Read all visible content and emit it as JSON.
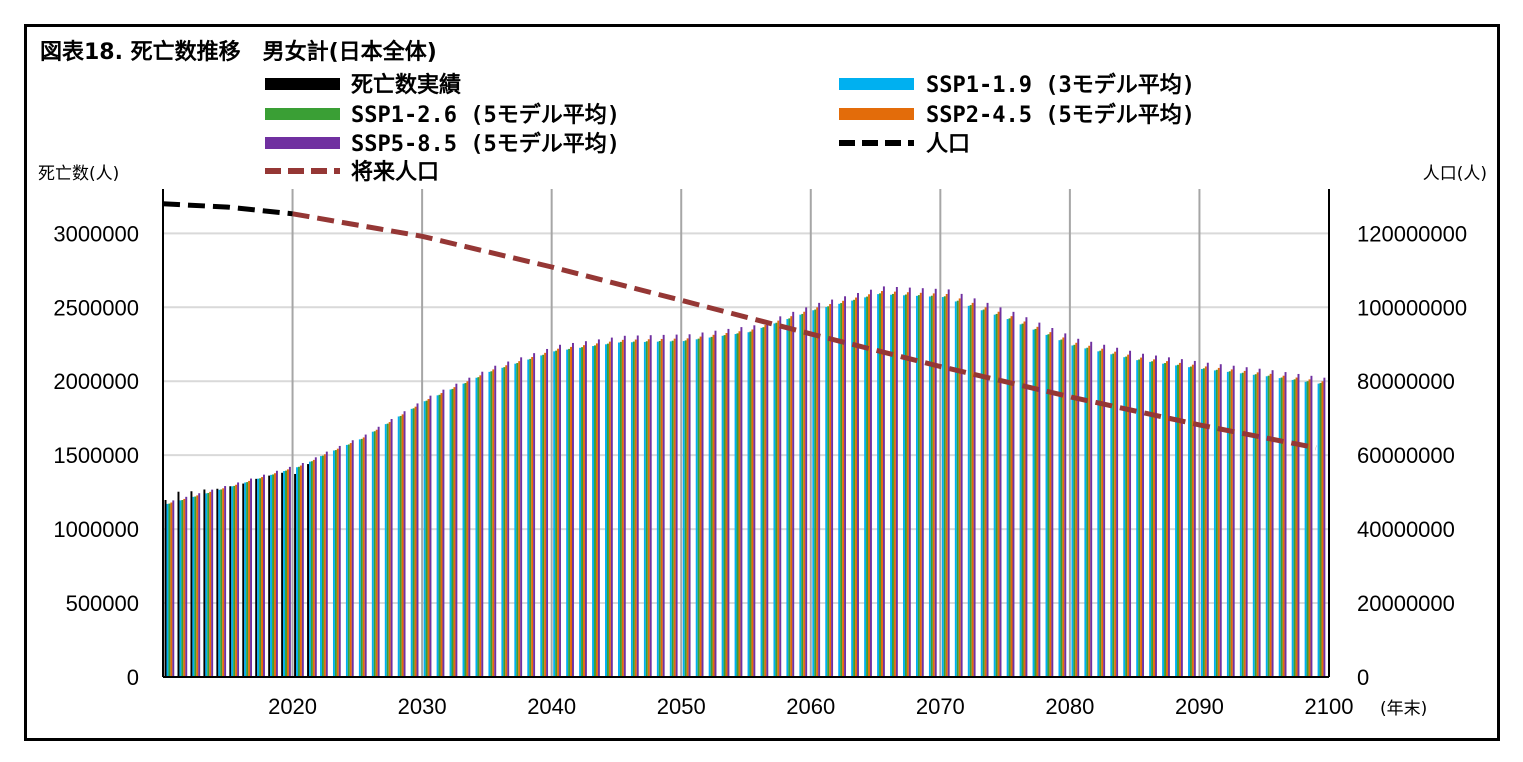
{
  "chart_data": {
    "type": "bar",
    "title": "図表18. 死亡数推移　男女計(日本全体)",
    "ylabel_left": "死亡数(人)",
    "ylabel_right": "人口(人)",
    "xlabel": "(年末)",
    "x_ticks": [
      2020,
      2030,
      2040,
      2050,
      2060,
      2070,
      2080,
      2090,
      2100
    ],
    "y_left_ticks": [
      "0",
      "500000",
      "1000000",
      "1500000",
      "2000000",
      "2500000",
      "3000000"
    ],
    "y_right_ticks": [
      "0",
      "20000000",
      "40000000",
      "60000000",
      "80000000",
      "100000000",
      "120000000"
    ],
    "ylim_left": [
      0,
      3300000
    ],
    "ylim_right": [
      0,
      132000000
    ],
    "xlim": [
      2010,
      2100
    ],
    "grid": "horizontal gridlines every 500000; vertical gridlines every 10 years",
    "legend": [
      {
        "label": "死亡数実績",
        "type": "bar",
        "color": "#000000"
      },
      {
        "label": "SSP1-1.9 (3モデル平均)",
        "type": "bar",
        "color": "#00b0f0"
      },
      {
        "label": "SSP1-2.6 (5モデル平均)",
        "type": "bar",
        "color": "#3a9f35"
      },
      {
        "label": "SSP2-4.5 (5モデル平均)",
        "type": "bar",
        "color": "#e36c0a"
      },
      {
        "label": "SSP5-8.5 (5モデル平均)",
        "type": "bar",
        "color": "#7030a0"
      },
      {
        "label": "人口",
        "type": "dashed-line",
        "color": "#000000"
      },
      {
        "label": "将来人口",
        "type": "dashed-line",
        "color": "#953735"
      }
    ],
    "death_actual": {
      "years": [
        2010,
        2011,
        2012,
        2013,
        2014,
        2015,
        2016,
        2017,
        2018,
        2019,
        2020,
        2021
      ],
      "values": [
        1197000,
        1253000,
        1256000,
        1268000,
        1273000,
        1290000,
        1308000,
        1340000,
        1362000,
        1381000,
        1373000,
        1440000
      ]
    },
    "death_projection": {
      "years": [
        2010,
        2015,
        2020,
        2025,
        2030,
        2035,
        2040,
        2045,
        2050,
        2055,
        2060,
        2065,
        2070,
        2075,
        2080,
        2085,
        2090,
        2095,
        2099
      ],
      "values": [
        1180000,
        1300000,
        1430000,
        1620000,
        1880000,
        2080000,
        2220000,
        2280000,
        2290000,
        2350000,
        2500000,
        2610000,
        2590000,
        2440000,
        2260000,
        2160000,
        2100000,
        2050000,
        2000000
      ],
      "series_offsets": {
        "SSP1-1.9 (3モデル平均)": -0.008,
        "SSP1-2.6 (5モデル平均)": -0.006,
        "SSP2-4.5 (5モデル平均)": 0.0,
        "SSP5-8.5 (5モデル平均)": 0.012
      }
    },
    "population_actual": {
      "years": [
        2010,
        2015,
        2020
      ],
      "values": [
        128000000,
        127100000,
        125300000
      ]
    },
    "population_future": {
      "years": [
        2020,
        2030,
        2040,
        2050,
        2060,
        2070,
        2080,
        2090,
        2099
      ],
      "values": [
        125300000,
        119200000,
        110900000,
        101900000,
        92800000,
        84000000,
        75800000,
        68200000,
        62000000
      ]
    }
  }
}
